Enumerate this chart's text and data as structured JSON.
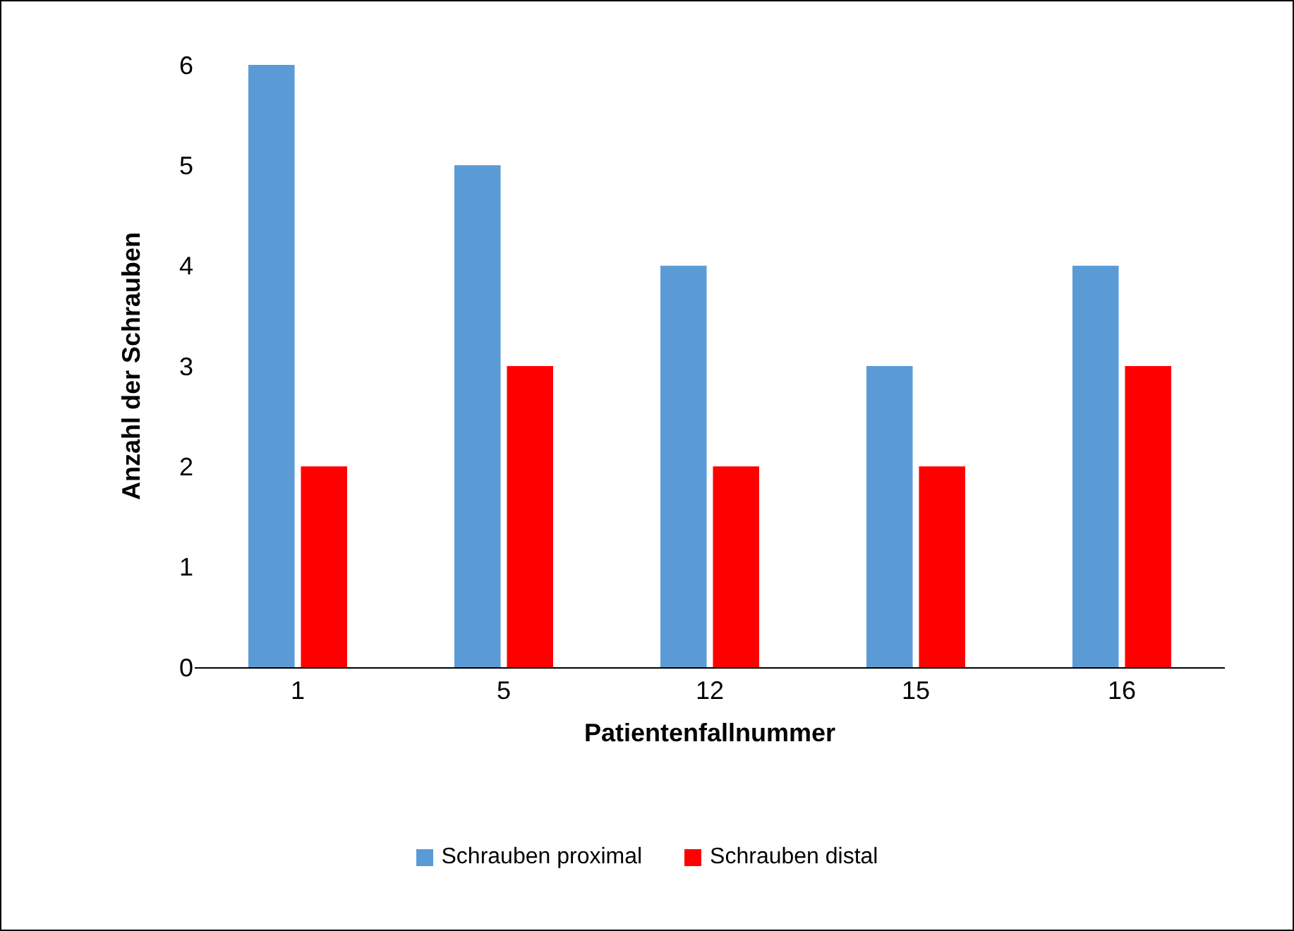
{
  "chart_data": {
    "type": "bar",
    "xlabel": "Patientenfallnummer",
    "ylabel": "Anzahl der Schrauben",
    "categories": [
      "1",
      "5",
      "12",
      "15",
      "16"
    ],
    "series": [
      {
        "name": "Schrauben proximal",
        "color": "#5b9bd5",
        "values": [
          6,
          5,
          4,
          3,
          4
        ]
      },
      {
        "name": "Schrauben distal",
        "color": "#ff0000",
        "values": [
          2,
          3,
          2,
          2,
          3
        ]
      }
    ],
    "ylim": [
      0,
      6
    ],
    "yticks": [
      0,
      1,
      2,
      3,
      4,
      5,
      6
    ],
    "grid": false,
    "legend": "bottom"
  }
}
